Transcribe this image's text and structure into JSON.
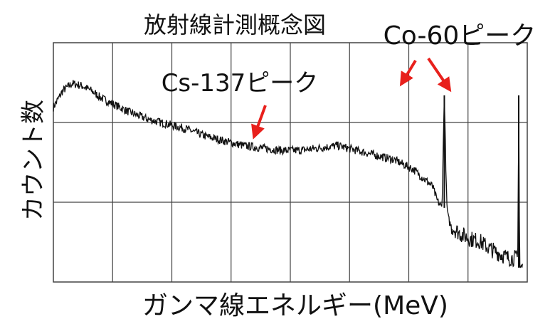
{
  "chart_data": {
    "type": "line",
    "title": "放射線計測概念図",
    "xlabel": "ガンマ線エネルギー(MeV)",
    "ylabel": "カウント数",
    "grid": true,
    "legend": "none",
    "x_ticks": [],
    "y_ticks": [],
    "xlim": [
      0,
      1
    ],
    "ylim": [
      0,
      1
    ],
    "series": [
      {
        "x": [
          0.0,
          0.02,
          0.04,
          0.06,
          0.08,
          0.1,
          0.13,
          0.16,
          0.2,
          0.24,
          0.28,
          0.32,
          0.36,
          0.4,
          0.44,
          0.48,
          0.52,
          0.56,
          0.6,
          0.64,
          0.68,
          0.72,
          0.76,
          0.8,
          0.81,
          0.82,
          0.825,
          0.83,
          0.833,
          0.836,
          0.84,
          0.86,
          0.88,
          0.9,
          0.92,
          0.94,
          0.96,
          0.98,
          0.982,
          0.984,
          0.99
        ],
        "y": [
          0.73,
          0.8,
          0.83,
          0.82,
          0.8,
          0.77,
          0.74,
          0.71,
          0.68,
          0.66,
          0.64,
          0.61,
          0.59,
          0.57,
          0.56,
          0.55,
          0.55,
          0.56,
          0.57,
          0.55,
          0.53,
          0.51,
          0.47,
          0.4,
          0.34,
          0.31,
          0.78,
          0.33,
          0.27,
          0.25,
          0.23,
          0.2,
          0.18,
          0.17,
          0.14,
          0.12,
          0.1,
          0.1,
          0.78,
          0.06,
          0.06
        ]
      }
    ],
    "annotations": [
      {
        "text": "Cs-137ピーク"
      },
      {
        "text": "Co-60ピーク"
      }
    ]
  },
  "colors": {
    "line": "#111111",
    "grid": "#444444",
    "arrow": "#e8201c",
    "text": "#111111"
  }
}
